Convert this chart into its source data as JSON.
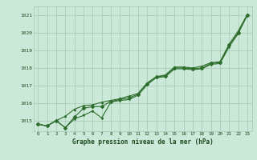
{
  "xlabel": "Graphe pression niveau de la mer (hPa)",
  "hours": [
    0,
    1,
    2,
    3,
    4,
    5,
    6,
    7,
    8,
    9,
    10,
    11,
    12,
    13,
    14,
    15,
    16,
    17,
    18,
    19,
    20,
    21,
    22,
    23
  ],
  "series_mean": [
    1014.8,
    1014.7,
    1015.0,
    1014.6,
    1015.2,
    1015.7,
    1015.8,
    1015.8,
    1016.1,
    1016.2,
    1016.3,
    1016.5,
    1017.1,
    1017.5,
    1017.55,
    1018.0,
    1018.0,
    1017.95,
    1018.0,
    1018.25,
    1018.3,
    1019.3,
    1020.0,
    1021.0
  ],
  "series_max": [
    1014.8,
    1014.7,
    1015.0,
    1015.25,
    1015.65,
    1015.85,
    1015.9,
    1016.05,
    1016.15,
    1016.25,
    1016.4,
    1016.55,
    1017.15,
    1017.5,
    1017.6,
    1018.05,
    1018.05,
    1018.0,
    1018.1,
    1018.3,
    1018.35,
    1019.35,
    1020.1,
    1021.05
  ],
  "series_min": [
    1014.8,
    1014.7,
    1015.0,
    1014.6,
    1015.1,
    1015.3,
    1015.55,
    1015.15,
    1016.05,
    1016.15,
    1016.2,
    1016.45,
    1017.05,
    1017.45,
    1017.5,
    1017.95,
    1017.95,
    1017.9,
    1017.95,
    1018.2,
    1018.25,
    1019.2,
    1019.95,
    1021.0
  ],
  "line_color": "#2d6e2d",
  "bg_color": "#cce8d8",
  "grid_color": "#a0c8b0",
  "text_color": "#1a4a1a",
  "ylim_min": 1014.4,
  "ylim_max": 1021.5,
  "yticks": [
    1015,
    1016,
    1017,
    1018,
    1019,
    1020,
    1021
  ]
}
